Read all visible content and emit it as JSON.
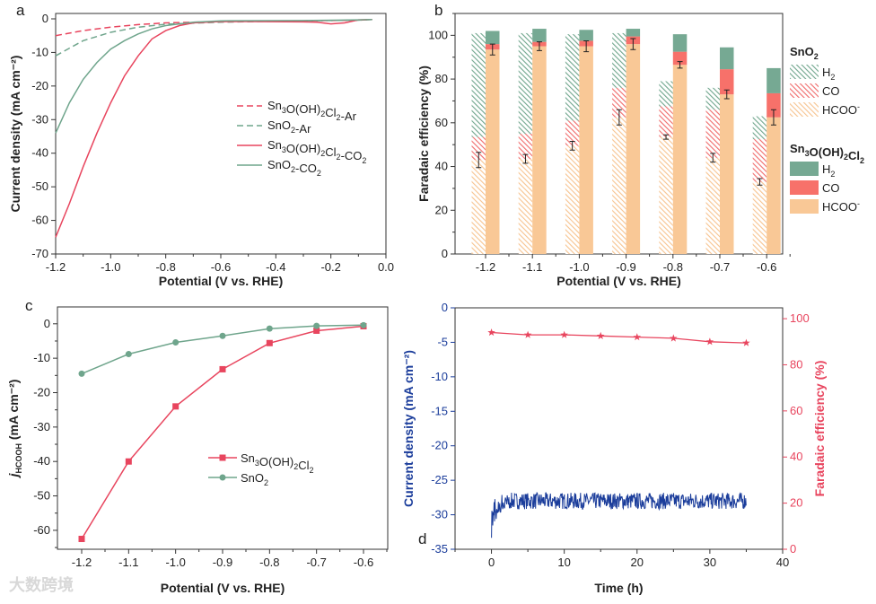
{
  "watermark": "大数跨境",
  "colors": {
    "red": "#e8455e",
    "green": "#6fa58c",
    "hcoo": "#f9c896",
    "co": "#f7716a",
    "h2": "#76a993",
    "blue": "#1b3d9b"
  },
  "chart_data": [
    {
      "panel": "a",
      "type": "line",
      "xlabel": "Potential (V vs. RHE)",
      "ylabel": "Current density (mA cm⁻²)",
      "xlim": [
        -1.2,
        0.0
      ],
      "ylim": [
        -70,
        1.6
      ],
      "xticks": [
        "-1.2",
        "-1.0",
        "-0.8",
        "-0.6",
        "-0.4",
        "-0.2",
        "0.0"
      ],
      "yticks": [
        "0",
        "-10",
        "-20",
        "-30",
        "-40",
        "-50",
        "-60",
        "-70"
      ],
      "legend_position": "center-right",
      "series": [
        {
          "name": "Sn3O(OH)2Cl2-Ar",
          "style": "dashed",
          "color": "red",
          "x": [
            -1.2,
            -1.1,
            -1.0,
            -0.9,
            -0.8,
            -0.6,
            -0.3,
            -0.1,
            -0.05
          ],
          "y": [
            -5,
            -3.5,
            -2.5,
            -1.7,
            -1.2,
            -0.8,
            -0.6,
            -0.4,
            -0.2
          ]
        },
        {
          "name": "SnO2-Ar",
          "style": "dashed",
          "color": "green",
          "x": [
            -1.2,
            -1.1,
            -1.0,
            -0.9,
            -0.8,
            -0.6,
            -0.3,
            -0.1,
            -0.05
          ],
          "y": [
            -11,
            -6.5,
            -4,
            -2.5,
            -1.6,
            -1,
            -0.6,
            -0.4,
            -0.2
          ]
        },
        {
          "name": "Sn3O(OH)2Cl2-CO2",
          "style": "solid",
          "color": "red",
          "x": [
            -1.2,
            -1.15,
            -1.1,
            -1.05,
            -1.0,
            -0.95,
            -0.9,
            -0.85,
            -0.8,
            -0.75,
            -0.7,
            -0.6,
            -0.5,
            -0.3,
            -0.25,
            -0.2,
            -0.15,
            -0.1,
            -0.05
          ],
          "y": [
            -65,
            -55,
            -44,
            -34,
            -25,
            -17,
            -11,
            -6,
            -3.5,
            -2,
            -1.2,
            -0.8,
            -0.8,
            -0.9,
            -1,
            -1.5,
            -1.2,
            -0.3,
            -0.2
          ]
        },
        {
          "name": "SnO2-CO2",
          "style": "solid",
          "color": "green",
          "x": [
            -1.2,
            -1.15,
            -1.1,
            -1.05,
            -1.0,
            -0.95,
            -0.9,
            -0.85,
            -0.8,
            -0.7,
            -0.6,
            -0.3,
            -0.1,
            -0.05
          ],
          "y": [
            -34,
            -25,
            -18,
            -13,
            -9,
            -6.5,
            -4.5,
            -3,
            -2,
            -1,
            -0.6,
            -0.5,
            -0.3,
            -0.2
          ]
        }
      ]
    },
    {
      "panel": "b",
      "type": "bar",
      "stacked": true,
      "xlabel": "Potential (V vs. RHE)",
      "ylabel": "Faradaic efficiency (%)",
      "categories": [
        "-1.2",
        "-1.1",
        "-1.0",
        "-0.9",
        "-0.8",
        "-0.7",
        "-0.6"
      ],
      "ylim": [
        0,
        110
      ],
      "yticks": [
        "0",
        "20",
        "40",
        "60",
        "80",
        "100"
      ],
      "legend_position": "right",
      "groups": [
        {
          "name": "SnO2",
          "fill": "hatched",
          "HCOO-": [
            43,
            43.5,
            49.5,
            62.5,
            53.5,
            44,
            33
          ],
          "CO": [
            10.5,
            11.5,
            11.5,
            13.5,
            14,
            22,
            19.5
          ],
          "H2": [
            47.5,
            46,
            39.5,
            25,
            11.5,
            10,
            10.5
          ],
          "HCOO_err": [
            3.5,
            2,
            2,
            3.5,
            1,
            2,
            1.5
          ]
        },
        {
          "name": "Sn3O(OH)2Cl2",
          "fill": "solid",
          "HCOO-": [
            93.5,
            95,
            95,
            96,
            86.5,
            73,
            62.5
          ],
          "CO": [
            2.5,
            2,
            2.5,
            3.5,
            6,
            11.5,
            11
          ],
          "H2": [
            6,
            6,
            5,
            3.5,
            8,
            10,
            11.5
          ],
          "HCOO_err": [
            2.5,
            2,
            2.5,
            2.5,
            1.5,
            2,
            3.5
          ]
        }
      ],
      "legend_items": [
        "H2",
        "CO",
        "HCOO-"
      ]
    },
    {
      "panel": "c",
      "type": "line",
      "xlabel": "Potential (V vs. RHE)",
      "ylabel_main": "j",
      "ylabel_sub": "HCOOH",
      "ylabel_unit": " (mA cm⁻²)",
      "x": [
        -1.2,
        -1.1,
        -1.0,
        -0.9,
        -0.8,
        -0.7,
        -0.6
      ],
      "xticks": [
        "-1.2",
        "-1.1",
        "-1.0",
        "-0.9",
        "-0.8",
        "-0.7",
        "-0.6"
      ],
      "yticks": [
        "0",
        "-10",
        "-20",
        "-30",
        "-40",
        "-50",
        "-60"
      ],
      "ylim": [
        -65.5,
        4.9
      ],
      "legend_position": "center-right",
      "series": [
        {
          "name": "Sn3O(OH)2Cl2",
          "marker": "square",
          "color": "red",
          "values": [
            -62.5,
            -40,
            -24,
            -13.2,
            -5.6,
            -2,
            -0.7
          ]
        },
        {
          "name": "SnO2",
          "marker": "circle",
          "color": "green",
          "values": [
            -14.5,
            -8.8,
            -5.4,
            -3.5,
            -1.4,
            -0.6,
            -0.4
          ]
        }
      ]
    },
    {
      "panel": "d",
      "type": "line",
      "xlabel": "Time (h)",
      "ylabel_left": "Current density (mA cm⁻²)",
      "ylabel_right": "Faradaic efficiency (%)",
      "xlim": [
        -5,
        40
      ],
      "ylim_left": [
        -35,
        0
      ],
      "ylim_right": [
        0,
        104.7
      ],
      "xticks": [
        "0",
        "10",
        "20",
        "30",
        "40"
      ],
      "yticks_left": [
        "0",
        "-5",
        "-10",
        "-15",
        "-20",
        "-25",
        "-30",
        "-35"
      ],
      "yticks_right": [
        "0",
        "20",
        "40",
        "60",
        "80",
        "100"
      ],
      "current_density": {
        "t_start": 0,
        "t_end": 35,
        "mean": -28,
        "noise_amplitude": 1.2,
        "initial_dip": -31
      },
      "faradaic_efficiency": {
        "t": [
          0,
          5,
          10,
          15,
          20,
          25,
          30,
          35
        ],
        "values": [
          94,
          93,
          93,
          92.5,
          92,
          91.5,
          90,
          89.5
        ]
      }
    }
  ]
}
